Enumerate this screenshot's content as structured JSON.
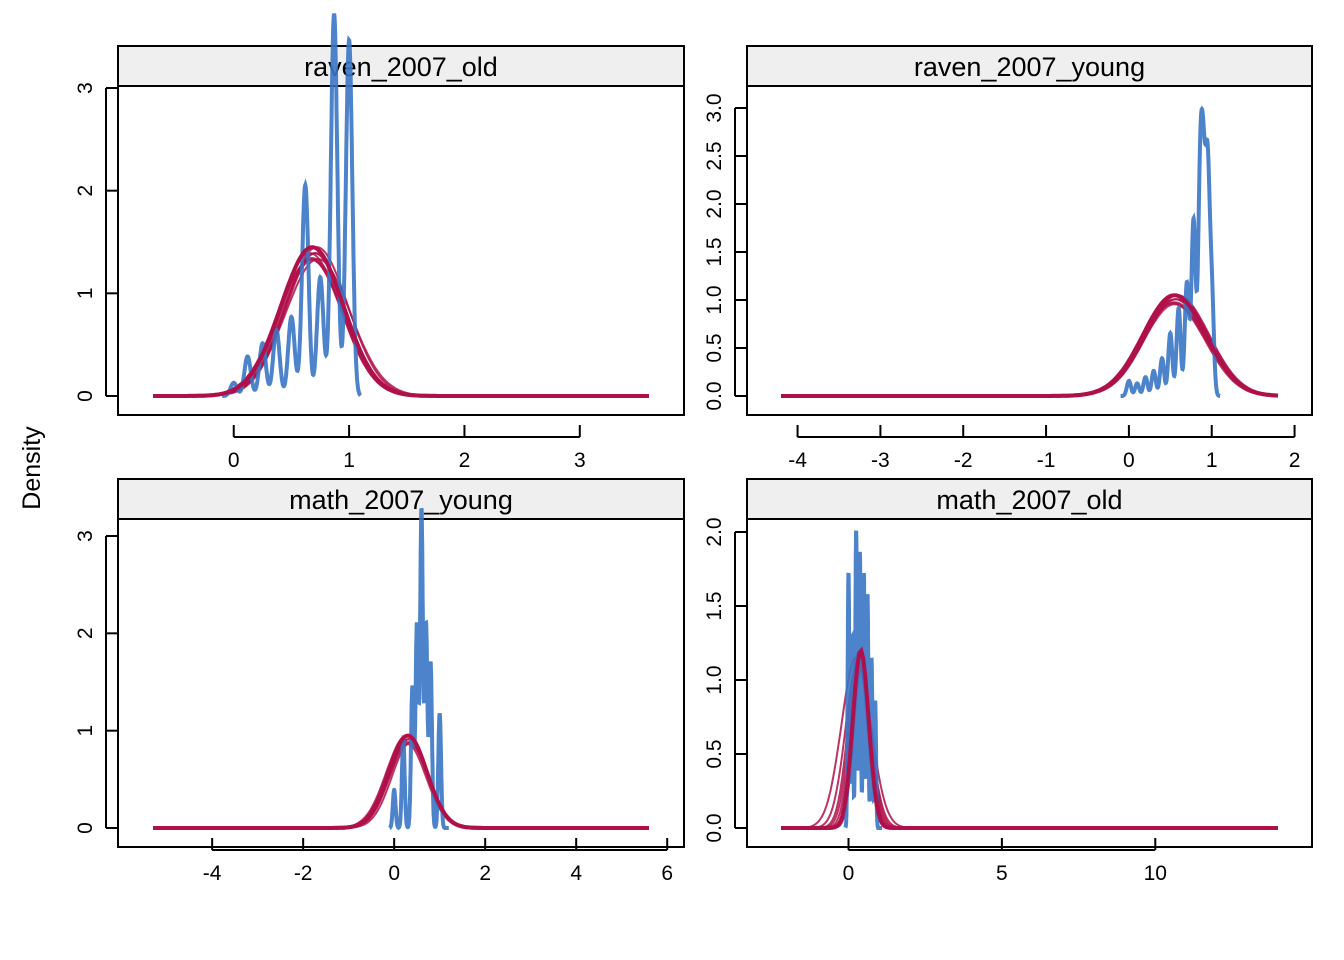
{
  "figure": {
    "ylabel": "Density",
    "colors": {
      "observed": "#3A75C4",
      "replicated": "#B0104A",
      "strip_bg": "#EFEFEF"
    }
  },
  "chart_data": [
    {
      "type": "line",
      "title": "raven_2007_old",
      "ylabel": "Density",
      "xlim": [
        -0.7,
        3.6
      ],
      "ylim": [
        0,
        3.8
      ],
      "xticks": [
        0,
        1,
        2,
        3
      ],
      "yticks": [
        0,
        1,
        2,
        3
      ],
      "ytick_rotation": "vertical",
      "series": [
        {
          "role": "observed",
          "mixture": {
            "weights": [
              0.01,
              0.03,
              0.04,
              0.05,
              0.06,
              0.07,
              0.09,
              0.11,
              0.14,
              0.18,
              0.13,
              0.09
            ],
            "means": [
              0.0,
              0.12,
              0.25,
              0.37,
              0.5,
              0.62,
              0.75,
              0.87,
              1.0,
              0.87,
              1.0,
              0.62
            ],
            "sd": 0.028
          },
          "x": [
            -0.1,
            1.1
          ]
        },
        {
          "role": "replicated",
          "normal_params": [
            [
              0.68,
              0.27
            ],
            [
              0.7,
              0.26
            ],
            [
              0.72,
              0.27
            ],
            [
              0.67,
              0.28
            ],
            [
              0.71,
              0.26
            ],
            [
              0.69,
              0.27
            ],
            [
              0.73,
              0.28
            ],
            [
              0.66,
              0.27
            ]
          ],
          "peak": 1.45,
          "x": [
            -0.7,
            3.6
          ]
        }
      ]
    },
    {
      "type": "line",
      "title": "raven_2007_young",
      "ylabel": "Density",
      "xlim": [
        -4.2,
        1.8
      ],
      "ylim": [
        0,
        3.05
      ],
      "xticks": [
        -4,
        -3,
        -2,
        -1,
        0,
        1,
        2
      ],
      "yticks": [
        0.0,
        0.5,
        1.0,
        1.5,
        2.0,
        2.5,
        3.0
      ],
      "ytick_labels": [
        "0.0",
        "0.5",
        "1.0",
        "1.5",
        "2.0",
        "2.5",
        "3.0"
      ],
      "series": [
        {
          "role": "observed",
          "mixture": {
            "weights": [
              0.012,
              0.01,
              0.015,
              0.02,
              0.03,
              0.05,
              0.07,
              0.09,
              0.14,
              0.16,
              0.15,
              0.17,
              0.08
            ],
            "means": [
              0.0,
              0.1,
              0.2,
              0.3,
              0.4,
              0.5,
              0.6,
              0.7,
              0.78,
              0.86,
              0.9,
              0.95,
              1.0
            ],
            "sd": 0.025
          },
          "x": [
            -0.1,
            1.1
          ]
        },
        {
          "role": "replicated",
          "normal_params": [
            [
              0.55,
              0.38
            ],
            [
              0.57,
              0.37
            ],
            [
              0.58,
              0.38
            ],
            [
              0.54,
              0.39
            ],
            [
              0.56,
              0.37
            ],
            [
              0.59,
              0.38
            ]
          ],
          "peak": 1.05,
          "x": [
            -4.2,
            1.8
          ]
        }
      ]
    },
    {
      "type": "line",
      "title": "math_2007_young",
      "ylabel": "Density",
      "xlim": [
        -5.3,
        5.6
      ],
      "ylim": [
        0,
        3.35
      ],
      "xticks": [
        -4,
        -2,
        0,
        2,
        4,
        6
      ],
      "yticks": [
        0,
        1,
        2,
        3
      ],
      "series": [
        {
          "role": "observed",
          "mixture": {
            "weights": [
              0.03,
              0.07,
              0.11,
              0.16,
              0.25,
              0.16,
              0.13,
              0.09
            ],
            "means": [
              0.0,
              0.2,
              0.4,
              0.5,
              0.6,
              0.7,
              0.8,
              1.0
            ],
            "sd": 0.03
          },
          "x": [
            -0.1,
            1.2
          ]
        },
        {
          "role": "replicated",
          "normal_params": [
            [
              0.3,
              0.42
            ],
            [
              0.32,
              0.41
            ],
            [
              0.28,
              0.43
            ],
            [
              0.35,
              0.4
            ],
            [
              0.31,
              0.42
            ],
            [
              0.27,
              0.44
            ]
          ],
          "peak": 0.95,
          "x": [
            -5.3,
            5.6
          ]
        }
      ]
    },
    {
      "type": "line",
      "title": "math_2007_old",
      "ylabel": "Density",
      "xlim": [
        -2.2,
        14.0
      ],
      "ylim": [
        0,
        2.05
      ],
      "xticks": [
        0,
        5,
        10
      ],
      "yticks": [
        0.0,
        0.5,
        1.0,
        1.5,
        2.0
      ],
      "ytick_labels": [
        "0.0",
        "0.5",
        "1.0",
        "1.5",
        "2.0"
      ],
      "series": [
        {
          "role": "observed",
          "mixture": {
            "weights": [
              0.12,
              0.09,
              0.14,
              0.13,
              0.12,
              0.11,
              0.08,
              0.06
            ],
            "means": [
              0.0,
              0.12,
              0.25,
              0.37,
              0.5,
              0.62,
              0.75,
              0.87
            ],
            "sd": 0.028
          },
          "x": [
            -0.1,
            1.1
          ]
        },
        {
          "role": "replicated",
          "normal_params": [
            [
              0.4,
              0.26
            ],
            [
              0.38,
              0.3
            ],
            [
              0.35,
              0.35
            ],
            [
              0.3,
              0.4
            ],
            [
              0.25,
              0.48
            ],
            [
              0.42,
              0.24
            ],
            [
              0.36,
              0.33
            ]
          ],
          "peak": 1.2,
          "x": [
            -2.2,
            14.0
          ]
        }
      ]
    }
  ]
}
